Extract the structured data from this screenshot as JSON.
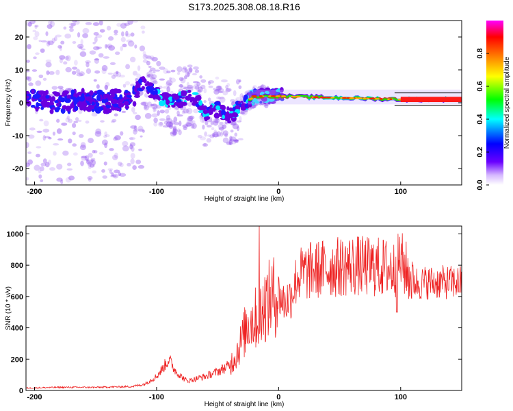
{
  "title": "S173.2025.308.08.18.R16",
  "chart_data": [
    {
      "type": "heatmap",
      "xlabel": "Height of straight line (km)",
      "ylabel": "Frequency (Hz)",
      "xlim": [
        -207,
        150
      ],
      "ylim": [
        -25,
        25
      ],
      "xticks": [
        -200,
        -100,
        0,
        100
      ],
      "yticks": [
        -20,
        -10,
        0,
        10,
        20
      ],
      "ridge": [
        {
          "x": -200,
          "y": 1
        },
        {
          "x": -180,
          "y": 0
        },
        {
          "x": -160,
          "y": 1
        },
        {
          "x": -140,
          "y": 0
        },
        {
          "x": -120,
          "y": 2
        },
        {
          "x": -110,
          "y": 5
        },
        {
          "x": -100,
          "y": 3
        },
        {
          "x": -90,
          "y": 0
        },
        {
          "x": -80,
          "y": 1
        },
        {
          "x": -70,
          "y": 2
        },
        {
          "x": -60,
          "y": -3
        },
        {
          "x": -50,
          "y": -2
        },
        {
          "x": -40,
          "y": -4
        },
        {
          "x": -30,
          "y": -1
        },
        {
          "x": -20,
          "y": 2
        },
        {
          "x": 0,
          "y": 2
        },
        {
          "x": 50,
          "y": 1.5
        },
        {
          "x": 100,
          "y": 1
        },
        {
          "x": 150,
          "y": 1
        }
      ],
      "colorbar": {
        "label": "Normalized spectral amplitude",
        "range": [
          0,
          1
        ],
        "ticks": [
          "0.0",
          "0.2",
          "0.4",
          "0.6",
          "0.8"
        ],
        "colors": [
          "#ffffff",
          "#6a00ff",
          "#0000ff",
          "#00ffff",
          "#00ff00",
          "#ffff00",
          "#ff8000",
          "#ff0000",
          "#ff00ff"
        ]
      }
    },
    {
      "type": "line",
      "xlabel": "Height of straight line (km)",
      "ylabel": "SNR (10 * v/v)",
      "xlim": [
        -207,
        150
      ],
      "ylim": [
        0,
        1050
      ],
      "xticks": [
        -200,
        -100,
        0,
        100
      ],
      "yticks": [
        0,
        200,
        400,
        600,
        800,
        1000
      ],
      "color": "#ee2222",
      "series": [
        {
          "name": "SNR",
          "x": [
            -207,
            -180,
            -150,
            -120,
            -110,
            -100,
            -95,
            -90,
            -85,
            -80,
            -75,
            -70,
            -60,
            -50,
            -45,
            -40,
            -35,
            -30,
            -25,
            -20,
            -15,
            -10,
            -5,
            0,
            5,
            10,
            15,
            20,
            30,
            40,
            50,
            60,
            70,
            80,
            90,
            95,
            100,
            105,
            110,
            115,
            120,
            130,
            140,
            150
          ],
          "y": [
            15,
            20,
            20,
            25,
            40,
            90,
            140,
            200,
            130,
            90,
            60,
            70,
            90,
            120,
            140,
            160,
            230,
            320,
            440,
            450,
            500,
            560,
            600,
            610,
            560,
            600,
            720,
            750,
            770,
            780,
            790,
            800,
            790,
            790,
            780,
            770,
            830,
            760,
            700,
            680,
            690,
            690,
            690,
            690
          ]
        }
      ]
    }
  ]
}
